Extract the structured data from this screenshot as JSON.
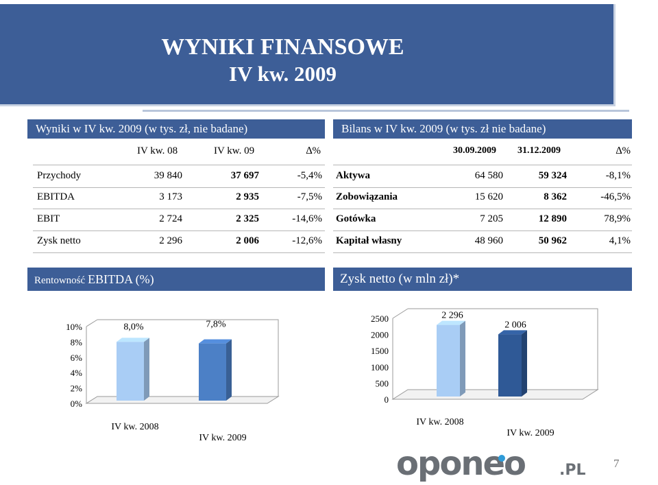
{
  "title": {
    "line1": "WYNIKI FINANSOWE",
    "line2": "IV kw. 2009"
  },
  "left_table": {
    "header": "Wyniki w IV kw. 2009 (w tys. zł, nie badane)",
    "columns": [
      "IV kw. 08",
      "IV kw. 09",
      "∆%"
    ],
    "rows": [
      {
        "label": "Przychody",
        "v1": "39 840",
        "v2": "37 697",
        "d": "-5,4%"
      },
      {
        "label": "EBITDA",
        "v1": "3 173",
        "v2": "2 935",
        "d": "-7,5%"
      },
      {
        "label": "EBIT",
        "v1": "2 724",
        "v2": "2 325",
        "d": "-14,6%"
      },
      {
        "label": "Zysk netto",
        "v1": "2 296",
        "v2": "2 006",
        "d": "-12,6%"
      }
    ]
  },
  "right_table": {
    "header": "Bilans w IV kw. 2009 (w tys. zł nie badane)",
    "columns": [
      "30.09.2009",
      "31.12.2009",
      "∆%"
    ],
    "rows": [
      {
        "label": "Aktywa",
        "v1": "64 580",
        "v2": "59 324",
        "d": "-8,1%"
      },
      {
        "label": "Zobowiązania",
        "v1": "15 620",
        "v2": "8 362",
        "d": "-46,5%"
      },
      {
        "label": "Gotówka",
        "v1": "7 205",
        "v2": "12 890",
        "d": "78,9%"
      },
      {
        "label": "Kapitał własny",
        "v1": "48 960",
        "v2": "50 962",
        "d": "4,1%"
      }
    ]
  },
  "chart_headers": {
    "left_small": "Rentowność",
    "left_big": "EBITDA (%)",
    "right": "Zysk netto (w mln zł)*"
  },
  "chart_data": [
    {
      "type": "bar",
      "title": "Rentowność EBITDA (%)",
      "categories": [
        "IV kw. 2008",
        "IV kw. 2009"
      ],
      "values": [
        8.0,
        7.8
      ],
      "data_labels": [
        "8,0%",
        "7,8%"
      ],
      "yticks": [
        "0%",
        "2%",
        "4%",
        "6%",
        "8%",
        "10%"
      ],
      "ylim": [
        0,
        10
      ],
      "colors": [
        "#a9cdf5",
        "#4c80c6"
      ]
    },
    {
      "type": "bar",
      "title": "Zysk netto (w mln zł)*",
      "categories": [
        "IV kw. 2008",
        "IV kw. 2009"
      ],
      "values": [
        2296,
        2006
      ],
      "data_labels": [
        "2 296",
        "2 006"
      ],
      "yticks": [
        "0",
        "500",
        "1000",
        "1500",
        "2000",
        "2500"
      ],
      "ylim": [
        0,
        2500
      ],
      "colors": [
        "#a9cdf5",
        "#2f5996"
      ]
    }
  ],
  "logo_text": "oponeo",
  "logo_suffix": ".PL",
  "page_number": "7"
}
